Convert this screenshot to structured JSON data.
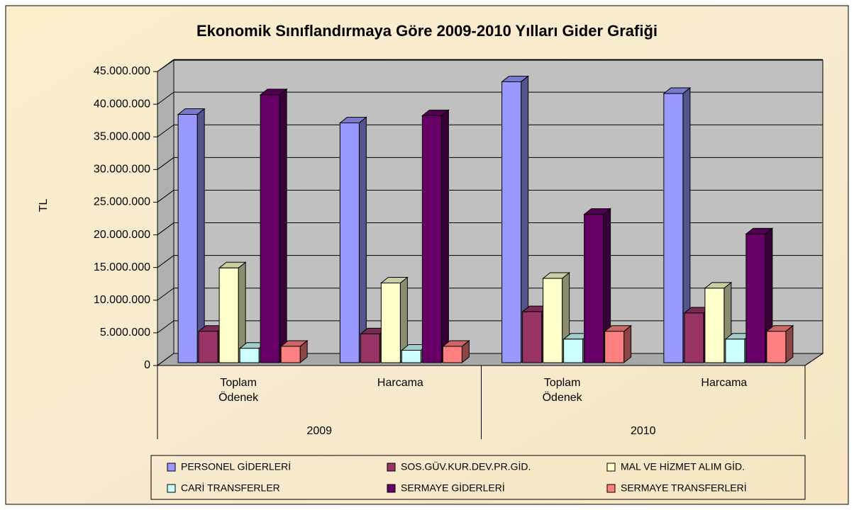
{
  "chart_data": {
    "type": "bar3d",
    "title": "Ekonomik Sınıflandırmaya Göre 2009-2010 Yılları Gider Grafiği",
    "y_label": "TL",
    "categories": [
      "Toplam Ödenek",
      "Harcama",
      "Toplam Ödenek",
      "Harcama"
    ],
    "groups": [
      "2009",
      "2010"
    ],
    "ylim": [
      0,
      45000000
    ],
    "yticks": [
      0,
      {
        "value": 5000000,
        "label": "5.000.000"
      },
      {
        "value": 10000000,
        "label": "10.000.000"
      },
      {
        "value": 15000000,
        "label": "15.000.000"
      },
      {
        "value": 20000000,
        "label": "20.000.000"
      },
      {
        "value": 25000000,
        "label": "25.000.000"
      },
      {
        "value": 30000000,
        "label": "30.000.000"
      },
      {
        "value": 35000000,
        "label": "35.000.000"
      },
      {
        "value": 40000000,
        "label": "40.000.000"
      },
      {
        "value": 45000000,
        "label": "45.000.000"
      }
    ],
    "grid": true,
    "legend": "bottom",
    "series": [
      {
        "name": "PERSONEL GİDERLERİ",
        "color": "#9999ff",
        "values": [
          38000000,
          36700000,
          43000000,
          41200000
        ]
      },
      {
        "name": "SOS.GÜV.KUR.DEV.PR.GİD.",
        "color": "#993366",
        "values": [
          4800000,
          4400000,
          7800000,
          7600000
        ]
      },
      {
        "name": "MAL VE HİZMET ALIM GİD.",
        "color": "#ffffcc",
        "values": [
          14500000,
          12200000,
          12900000,
          11400000
        ]
      },
      {
        "name": "CARİ TRANSFERLER",
        "color": "#ccffff",
        "values": [
          2200000,
          1900000,
          3600000,
          3600000
        ]
      },
      {
        "name": "SERMAYE GİDERLERİ",
        "color": "#660066",
        "values": [
          41000000,
          37800000,
          22700000,
          19700000
        ]
      },
      {
        "name": "SERMAYE TRANSFERLERİ",
        "color": "#ff8080",
        "values": [
          2500000,
          2500000,
          4800000,
          4800000
        ]
      }
    ]
  }
}
